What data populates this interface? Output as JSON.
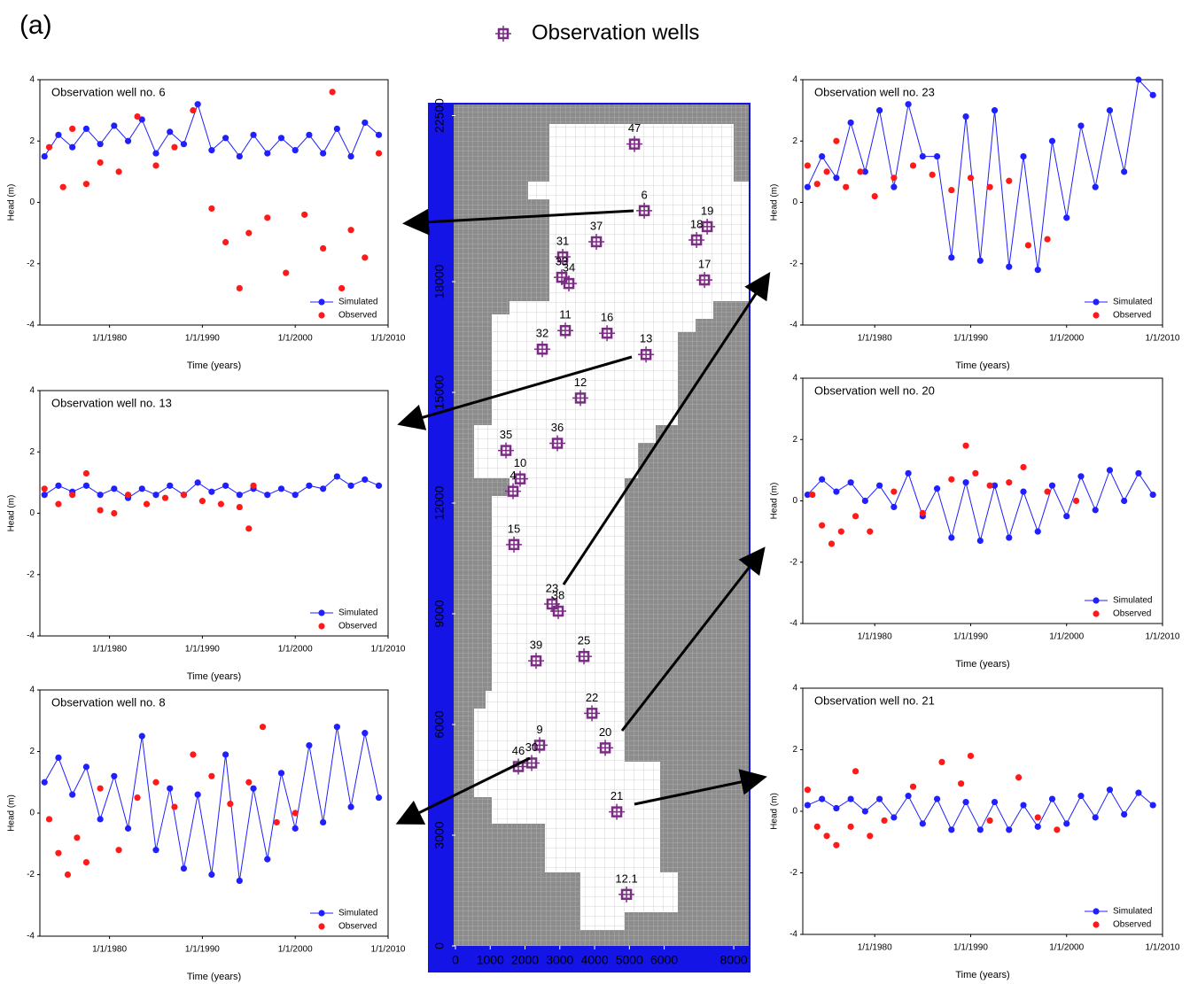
{
  "panel_label": "(a)",
  "chart_data": [
    {
      "type": "scatter",
      "series": [
        {
          "name": "Observation wells",
          "color": "#7b2c83",
          "labels": [
            "47",
            "6",
            "19",
            "18",
            "37",
            "31",
            "33",
            "34",
            "17",
            "11",
            "16",
            "32",
            "13",
            "12",
            "35",
            "36",
            "10",
            "4",
            "15",
            "23",
            "38",
            "39",
            "25",
            "22",
            "9",
            "20",
            "46",
            "30",
            "21",
            "12.1"
          ],
          "x": [
            5146,
            5427,
            7236,
            6930,
            4051,
            3083,
            3057,
            3261,
            7159,
            3159,
            4357,
            2497,
            5478,
            3592,
            1452,
            2930,
            1860,
            1656,
            1682,
            2777,
            2955,
            2318,
            3694,
            3924,
            2420,
            4306,
            1809,
            2191,
            4637,
            4917
          ],
          "y": [
            21728,
            19923,
            19490,
            19129,
            19081,
            18672,
            18118,
            17950,
            18046,
            16675,
            16603,
            16170,
            16025,
            14846,
            13426,
            13619,
            12656,
            12320,
            10876,
            9264,
            9071,
            7724,
            7844,
            6304,
            5438,
            5366,
            4860,
            4957,
            3633,
            1396
          ]
        }
      ],
      "xlim": [
        0,
        8430
      ],
      "ylim": [
        0,
        22800
      ],
      "xticks": [
        0,
        1000,
        2000,
        3000,
        4000,
        5000,
        6000,
        8000
      ],
      "yticks": [
        0,
        3000,
        6000,
        9000,
        12000,
        15000,
        18000,
        22500
      ]
    },
    {
      "type": "line",
      "title": "Observation well no. 6",
      "xlabel": "Time (years)",
      "ylabel": "Head (m)",
      "xlim": [
        1972.5,
        2010
      ],
      "ylim": [
        -4,
        4
      ],
      "yticks": [
        -4,
        -2,
        0,
        2,
        4
      ],
      "xticks": [
        {
          "value": 1980,
          "label": "1/1/1980"
        },
        {
          "value": 1990,
          "label": "1/1/1990"
        },
        {
          "value": 2000,
          "label": "1/1/2000"
        },
        {
          "value": 2010,
          "label": "1/1/2010"
        }
      ],
      "series": [
        {
          "name": "Simulated",
          "color": "#1f1fff",
          "line": true,
          "x": [
            1973,
            1974.5,
            1976,
            1977.5,
            1979,
            1980.5,
            1982,
            1983.5,
            1985,
            1986.5,
            1988,
            1989.5,
            1991,
            1992.5,
            1994,
            1995.5,
            1997,
            1998.5,
            2000,
            2001.5,
            2003,
            2004.5,
            2006,
            2007.5,
            2009
          ],
          "values": [
            1.5,
            2.2,
            1.8,
            2.4,
            1.9,
            2.5,
            2.0,
            2.7,
            1.6,
            2.3,
            1.9,
            3.2,
            1.7,
            2.1,
            1.5,
            2.2,
            1.6,
            2.1,
            1.7,
            2.2,
            1.6,
            2.4,
            1.5,
            2.6,
            2.2
          ]
        },
        {
          "name": "Observed",
          "color": "#ff1a1a",
          "line": false,
          "x": [
            1973.5,
            1975,
            1976,
            1977.5,
            1979,
            1981,
            1983,
            1985,
            1987,
            1989,
            1991,
            1992.5,
            1994,
            1995,
            1997,
            1999,
            2001,
            2003,
            2004,
            2005,
            2006,
            2007.5,
            2009
          ],
          "values": [
            1.8,
            0.5,
            2.4,
            0.6,
            1.3,
            1.0,
            2.8,
            1.2,
            1.8,
            3.0,
            -0.2,
            -1.3,
            -2.8,
            -1.0,
            -0.5,
            -2.3,
            -0.4,
            -1.5,
            3.6,
            -2.8,
            -0.9,
            -1.8,
            1.6
          ]
        }
      ]
    },
    {
      "type": "line",
      "title": "Observation well no. 13",
      "xlabel": "Time (years)",
      "ylabel": "Head (m)",
      "xlim": [
        1972.5,
        2010
      ],
      "ylim": [
        -4,
        4
      ],
      "yticks": [
        -4,
        -2,
        0,
        2,
        4
      ],
      "xticks": [
        {
          "value": 1980,
          "label": "1/1/1980"
        },
        {
          "value": 1990,
          "label": "1/1/1990"
        },
        {
          "value": 2000,
          "label": "1/1/2000"
        },
        {
          "value": 2010,
          "label": "1/1/2010"
        }
      ],
      "series": [
        {
          "name": "Simulated",
          "color": "#1f1fff",
          "line": true,
          "x": [
            1973,
            1974.5,
            1976,
            1977.5,
            1979,
            1980.5,
            1982,
            1983.5,
            1985,
            1986.5,
            1988,
            1989.5,
            1991,
            1992.5,
            1994,
            1995.5,
            1997,
            1998.5,
            2000,
            2001.5,
            2003,
            2004.5,
            2006,
            2007.5,
            2009
          ],
          "values": [
            0.6,
            0.9,
            0.7,
            0.9,
            0.6,
            0.8,
            0.5,
            0.8,
            0.6,
            0.9,
            0.6,
            1.0,
            0.7,
            0.9,
            0.6,
            0.8,
            0.6,
            0.8,
            0.6,
            0.9,
            0.8,
            1.2,
            0.9,
            1.1,
            0.9
          ]
        },
        {
          "name": "Observed",
          "color": "#ff1a1a",
          "line": false,
          "x": [
            1973,
            1974.5,
            1976,
            1977.5,
            1979,
            1980.5,
            1982,
            1984,
            1986,
            1988,
            1990,
            1992,
            1994,
            1995,
            1995.5
          ],
          "values": [
            0.8,
            0.3,
            0.6,
            1.3,
            0.1,
            0.0,
            0.6,
            0.3,
            0.5,
            0.6,
            0.4,
            0.3,
            0.2,
            -0.5,
            0.9
          ]
        }
      ]
    },
    {
      "type": "line",
      "title": "Observation well no. 8",
      "xlabel": "Time (years)",
      "ylabel": "Head (m)",
      "xlim": [
        1972.5,
        2010
      ],
      "ylim": [
        -4,
        4
      ],
      "yticks": [
        -4,
        -2,
        0,
        2,
        4
      ],
      "xticks": [
        {
          "value": 1980,
          "label": "1/1/1980"
        },
        {
          "value": 1990,
          "label": "1/1/1990"
        },
        {
          "value": 2000,
          "label": "1/1/2000"
        },
        {
          "value": 2010,
          "label": "1/1/2010"
        }
      ],
      "series": [
        {
          "name": "Simulated",
          "color": "#1f1fff",
          "line": true,
          "x": [
            1973,
            1974.5,
            1976,
            1977.5,
            1979,
            1980.5,
            1982,
            1983.5,
            1985,
            1986.5,
            1988,
            1989.5,
            1991,
            1992.5,
            1994,
            1995.5,
            1997,
            1998.5,
            2000,
            2001.5,
            2003,
            2004.5,
            2006,
            2007.5,
            2009
          ],
          "values": [
            1.0,
            1.8,
            0.6,
            1.5,
            -0.2,
            1.2,
            -0.5,
            2.5,
            -1.2,
            0.8,
            -1.8,
            0.6,
            -2.0,
            1.9,
            -2.2,
            0.8,
            -1.5,
            1.3,
            -0.5,
            2.2,
            -0.3,
            2.8,
            0.2,
            2.6,
            0.5
          ]
        },
        {
          "name": "Observed",
          "color": "#ff1a1a",
          "line": false,
          "x": [
            1973.5,
            1974.5,
            1975.5,
            1976.5,
            1977.5,
            1979,
            1981,
            1983,
            1985,
            1987,
            1989,
            1991,
            1993,
            1995,
            1996.5,
            1998,
            2000
          ],
          "values": [
            -0.2,
            -1.3,
            -2.0,
            -0.8,
            -1.6,
            0.8,
            -1.2,
            0.5,
            1.0,
            0.2,
            1.9,
            1.2,
            0.3,
            1.0,
            2.8,
            -0.3,
            0.0
          ]
        }
      ]
    },
    {
      "type": "line",
      "title": "Observation well no. 23",
      "xlabel": "Time (years)",
      "ylabel": "Head (m)",
      "xlim": [
        1972.5,
        2010
      ],
      "ylim": [
        -4,
        4
      ],
      "yticks": [
        -4,
        -2,
        0,
        2,
        4
      ],
      "xticks": [
        {
          "value": 1980,
          "label": "1/1/1980"
        },
        {
          "value": 1990,
          "label": "1/1/1990"
        },
        {
          "value": 2000,
          "label": "1/1/2000"
        },
        {
          "value": 2010,
          "label": "1/1/2010"
        }
      ],
      "series": [
        {
          "name": "Simulated",
          "color": "#1f1fff",
          "line": true,
          "x": [
            1973,
            1974.5,
            1976,
            1977.5,
            1979,
            1980.5,
            1982,
            1983.5,
            1985,
            1986.5,
            1988,
            1989.5,
            1991,
            1992.5,
            1994,
            1995.5,
            1997,
            1998.5,
            2000,
            2001.5,
            2003,
            2004.5,
            2006,
            2007.5,
            2009
          ],
          "values": [
            0.5,
            1.5,
            0.8,
            2.6,
            1.0,
            3.0,
            0.5,
            3.2,
            1.5,
            1.5,
            -1.8,
            2.8,
            -1.9,
            3.0,
            -2.1,
            1.5,
            -2.2,
            2.0,
            -0.5,
            2.5,
            0.5,
            3.0,
            1.0,
            4.0,
            3.5
          ]
        },
        {
          "name": "Observed",
          "color": "#ff1a1a",
          "line": false,
          "x": [
            1973,
            1974,
            1975,
            1976,
            1977,
            1978.5,
            1980,
            1982,
            1984,
            1986,
            1988,
            1990,
            1992,
            1994,
            1996,
            1998
          ],
          "values": [
            1.2,
            0.6,
            1.0,
            2.0,
            0.5,
            1.0,
            0.2,
            0.8,
            1.2,
            0.9,
            0.4,
            0.8,
            0.5,
            0.7,
            -1.4,
            -1.2
          ]
        }
      ]
    },
    {
      "type": "line",
      "title": "Observation well no. 20",
      "xlabel": "Time (years)",
      "ylabel": "Head (m)",
      "xlim": [
        1972.5,
        2010
      ],
      "ylim": [
        -4,
        4
      ],
      "yticks": [
        -4,
        -2,
        0,
        2,
        4
      ],
      "xticks": [
        {
          "value": 1980,
          "label": "1/1/1980"
        },
        {
          "value": 1990,
          "label": "1/1/1990"
        },
        {
          "value": 2000,
          "label": "1/1/2000"
        },
        {
          "value": 2010,
          "label": "1/1/2010"
        }
      ],
      "series": [
        {
          "name": "Simulated",
          "color": "#1f1fff",
          "line": true,
          "x": [
            1973,
            1974.5,
            1976,
            1977.5,
            1979,
            1980.5,
            1982,
            1983.5,
            1985,
            1986.5,
            1988,
            1989.5,
            1991,
            1992.5,
            1994,
            1995.5,
            1997,
            1998.5,
            2000,
            2001.5,
            2003,
            2004.5,
            2006,
            2007.5,
            2009
          ],
          "values": [
            0.2,
            0.7,
            0.3,
            0.6,
            0.0,
            0.5,
            -0.2,
            0.9,
            -0.5,
            0.4,
            -1.2,
            0.6,
            -1.3,
            0.5,
            -1.2,
            0.3,
            -1.0,
            0.5,
            -0.5,
            0.8,
            -0.3,
            1.0,
            0.0,
            0.9,
            0.2
          ]
        },
        {
          "name": "Observed",
          "color": "#ff1a1a",
          "line": false,
          "x": [
            1973.5,
            1974.5,
            1975.5,
            1976.5,
            1978,
            1979.5,
            1982,
            1985,
            1988,
            1989.5,
            1990.5,
            1992,
            1994,
            1995.5,
            1998,
            2001
          ],
          "values": [
            0.2,
            -0.8,
            -1.4,
            -1.0,
            -0.5,
            -1.0,
            0.3,
            -0.4,
            0.7,
            1.8,
            0.9,
            0.5,
            0.6,
            1.1,
            0.3,
            0.0
          ]
        }
      ]
    },
    {
      "type": "line",
      "title": "Observation well no. 21",
      "xlabel": "Time (years)",
      "ylabel": "Head (m)",
      "xlim": [
        1972.5,
        2010
      ],
      "ylim": [
        -4,
        4
      ],
      "yticks": [
        -4,
        -2,
        0,
        2,
        4
      ],
      "xticks": [
        {
          "value": 1980,
          "label": "1/1/1980"
        },
        {
          "value": 1990,
          "label": "1/1/1990"
        },
        {
          "value": 2000,
          "label": "1/1/2000"
        },
        {
          "value": 2010,
          "label": "1/1/2010"
        }
      ],
      "series": [
        {
          "name": "Simulated",
          "color": "#1f1fff",
          "line": true,
          "x": [
            1973,
            1974.5,
            1976,
            1977.5,
            1979,
            1980.5,
            1982,
            1983.5,
            1985,
            1986.5,
            1988,
            1989.5,
            1991,
            1992.5,
            1994,
            1995.5,
            1997,
            1998.5,
            2000,
            2001.5,
            2003,
            2004.5,
            2006,
            2007.5,
            2009
          ],
          "values": [
            0.2,
            0.4,
            0.1,
            0.4,
            0.0,
            0.4,
            -0.2,
            0.5,
            -0.4,
            0.4,
            -0.6,
            0.3,
            -0.6,
            0.3,
            -0.6,
            0.2,
            -0.5,
            0.4,
            -0.4,
            0.5,
            -0.2,
            0.7,
            -0.1,
            0.6,
            0.2
          ]
        },
        {
          "name": "Observed",
          "color": "#ff1a1a",
          "line": false,
          "x": [
            1973,
            1974,
            1975,
            1976,
            1977.5,
            1978,
            1979.5,
            1981,
            1984,
            1987,
            1989,
            1990,
            1992,
            1995,
            1997,
            1999
          ],
          "values": [
            0.7,
            -0.5,
            -0.8,
            -1.1,
            -0.5,
            1.3,
            -0.8,
            -0.3,
            0.8,
            1.6,
            0.9,
            1.8,
            -0.3,
            1.1,
            -0.2,
            -0.6
          ]
        }
      ]
    }
  ]
}
